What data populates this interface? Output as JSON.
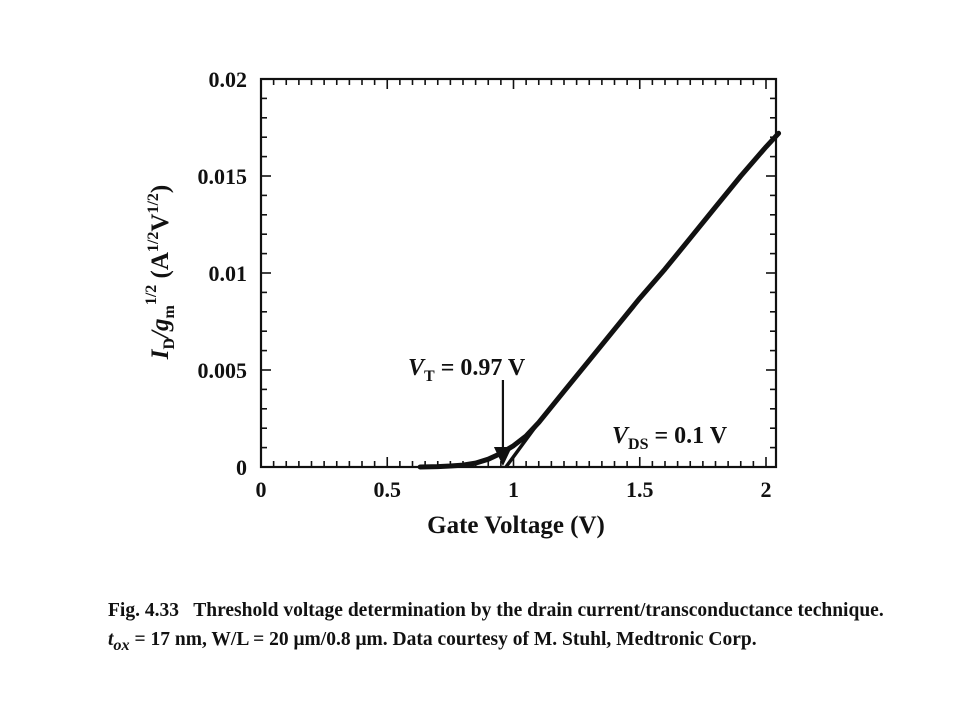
{
  "chart_data": {
    "type": "line",
    "xlabel": "Gate Voltage (V)",
    "ylabel": {
      "main": "I",
      "sub": "D",
      "mid": "/g",
      "sub2": "m",
      "sup": "1/2",
      "units": "(A",
      "units_sup1": "1/2",
      "units_mid": "V",
      "units_sup2": "1/2",
      "units_close": ")"
    },
    "xlim": [
      0,
      2.05
    ],
    "ylim": [
      0,
      0.02
    ],
    "xticks": [
      0,
      0.5,
      1,
      1.5,
      2
    ],
    "xtick_labels": [
      "0",
      "0.5",
      "1",
      "1.5",
      "2"
    ],
    "yticks": [
      0,
      0.005,
      0.01,
      0.015,
      0.02
    ],
    "ytick_labels": [
      "0",
      "0.005",
      "0.01",
      "0.015",
      "0.02"
    ],
    "series": [
      {
        "x": [
          0.63,
          0.7,
          0.75,
          0.8,
          0.85,
          0.9,
          0.95,
          1.0,
          1.05,
          1.1,
          1.2,
          1.3,
          1.4,
          1.5,
          1.6,
          1.7,
          1.8,
          1.9,
          2.0,
          2.05
        ],
        "y": [
          0.0,
          2e-05,
          5e-05,
          0.0001,
          0.0002,
          0.0004,
          0.0007,
          0.0011,
          0.0016,
          0.0023,
          0.0039,
          0.0055,
          0.0071,
          0.0087,
          0.0102,
          0.0118,
          0.0134,
          0.015,
          0.0165,
          0.0172
        ]
      }
    ],
    "extrapolation_line": {
      "x": [
        0.97,
        1.1
      ],
      "y": [
        0,
        0.0023
      ]
    },
    "annotations": [
      {
        "text_main": "V",
        "text_sub": "T",
        "text_rest": " = 0.97 V",
        "arrow_to_x": 0.97,
        "arrow_to_y": 0.0
      },
      {
        "text_main": "V",
        "text_sub": "DS",
        "text_rest": " = 0.1 V"
      }
    ],
    "grid": false
  },
  "caption": {
    "fig_label": "Fig. 4.33",
    "line1": "Threshold voltage determination by the drain current/transconductance technique.",
    "line2": "t",
    "line2_sub": "ox",
    "line2_rest": " = 17 nm, W/L = 20 μm/0.8 μm. Data courtesy of M. Stuhl, Medtronic Corp."
  }
}
